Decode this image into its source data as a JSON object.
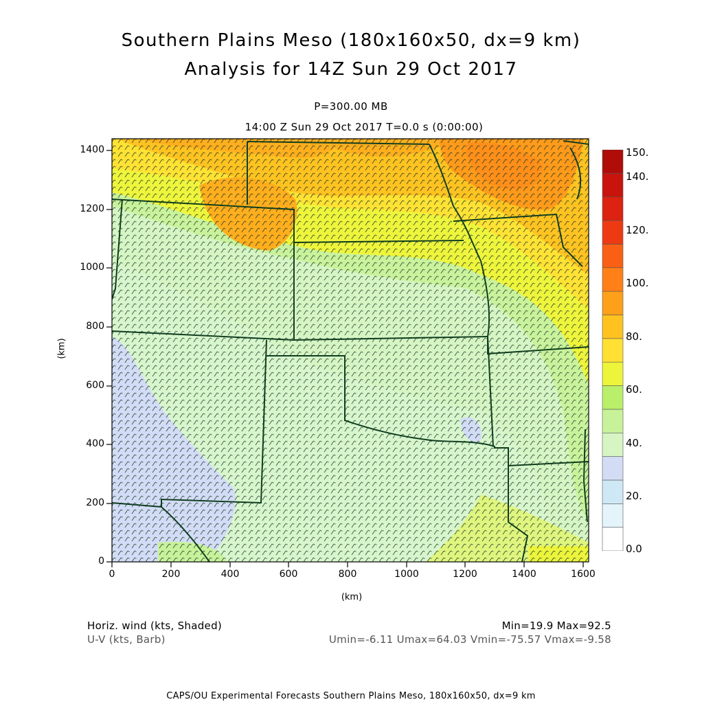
{
  "header": {
    "title_line1": "Southern Plains Meso (180x160x50, dx=9 km)",
    "title_line2": "Analysis for 14Z Sun 29 Oct 2017",
    "level": "P=300.00 MB",
    "valid_time": "14:00 Z Sun 29 Oct 2017    T=0.0 s (0:00:00)"
  },
  "map": {
    "x_unit_label": "(km)",
    "y_unit_label": "(km)",
    "x_ticks": [
      "0",
      "200",
      "400",
      "600",
      "800",
      "1000",
      "1200",
      "1400",
      "1600"
    ],
    "y_ticks": [
      "0",
      "200",
      "400",
      "600",
      "800",
      "1000",
      "1200",
      "1400"
    ],
    "x_range_km": [
      0,
      1620
    ],
    "y_range_km": [
      0,
      1440
    ],
    "border_color": "#0f3d1f"
  },
  "colorbar": {
    "labels": [
      "150.",
      "140.",
      "120.",
      "100.",
      "80.",
      "60.",
      "40.",
      "20.",
      "0.0"
    ],
    "colors": [
      "#ffffff",
      "#e3f4fb",
      "#cfe8f5",
      "#d2dcf5",
      "#d7f5c2",
      "#c8f29a",
      "#b9ef6a",
      "#ecf53a",
      "#ffe033",
      "#ffc21f",
      "#ffa01a",
      "#ff8017",
      "#f96015",
      "#ee3a13",
      "#dc2210",
      "#c8140c",
      "#b00c08"
    ]
  },
  "footer": {
    "field1": "Horiz. wind (kts, Shaded)",
    "field2": "U-V (kts, Barb)",
    "minmax": "Min=19.9 Max=92.5",
    "uv_stats": "Umin=-6.11 Umax=64.03 Vmin=-75.57 Vmax=-9.58",
    "credit": "CAPS/OU Experimental Forecasts  Southern Plains Meso, 180x160x50, dx=9 km"
  }
}
